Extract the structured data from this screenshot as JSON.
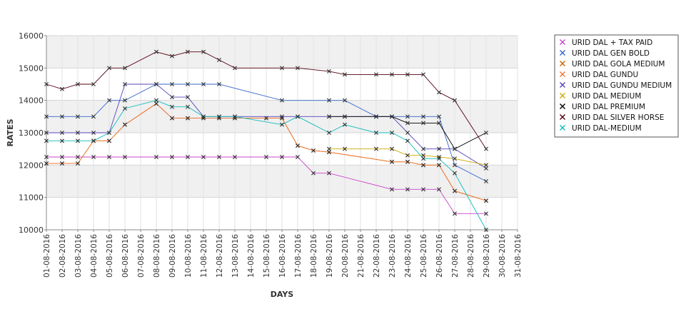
{
  "chart_data": {
    "type": "line",
    "title": "",
    "xlabel": "DAYS",
    "ylabel": "RATES",
    "ylim": [
      10000,
      16000
    ],
    "yticks": [
      10000,
      11000,
      12000,
      13000,
      14000,
      15000,
      16000
    ],
    "x_categories": [
      "01-08-2016",
      "02-08-2016",
      "03-08-2016",
      "04-08-2016",
      "05-08-2016",
      "06-08-2016",
      "07-08-2016",
      "08-08-2016",
      "09-08-2016",
      "10-08-2016",
      "11-08-2016",
      "12-08-2016",
      "13-08-2016",
      "14-08-2016",
      "15-08-2016",
      "16-08-2016",
      "17-08-2016",
      "18-08-2016",
      "19-08-2016",
      "20-08-2016",
      "21-08-2016",
      "22-08-2016",
      "23-08-2016",
      "24-08-2016",
      "25-08-2016",
      "26-08-2016",
      "27-08-2016",
      "28-08-2016",
      "29-08-2016",
      "30-08-2016",
      "31-08-2016"
    ],
    "grid": true,
    "legend_position": "right",
    "series": [
      {
        "name": "URID DAL + TAX PAID",
        "color": "#cc44cc",
        "points": [
          [
            0,
            12250
          ],
          [
            1,
            12250
          ],
          [
            2,
            12250
          ],
          [
            3,
            12250
          ],
          [
            4,
            12250
          ],
          [
            5,
            12250
          ],
          [
            7,
            12250
          ],
          [
            8,
            12250
          ],
          [
            9,
            12250
          ],
          [
            10,
            12250
          ],
          [
            11,
            12250
          ],
          [
            12,
            12250
          ],
          [
            14,
            12250
          ],
          [
            15,
            12250
          ],
          [
            16,
            12250
          ],
          [
            17,
            11750
          ],
          [
            18,
            11750
          ],
          [
            22,
            11250
          ],
          [
            23,
            11250
          ],
          [
            24,
            11250
          ],
          [
            25,
            11250
          ],
          [
            26,
            10500
          ],
          [
            28,
            10500
          ]
        ]
      },
      {
        "name": "URID DAL GEN BOLD",
        "color": "#3366cc",
        "points": [
          [
            0,
            13500
          ],
          [
            1,
            13500
          ],
          [
            2,
            13500
          ],
          [
            3,
            13500
          ],
          [
            4,
            14000
          ],
          [
            5,
            14000
          ],
          [
            7,
            14500
          ],
          [
            8,
            14500
          ],
          [
            9,
            14500
          ],
          [
            10,
            14500
          ],
          [
            11,
            14500
          ],
          [
            15,
            14000
          ],
          [
            18,
            14000
          ],
          [
            19,
            14000
          ],
          [
            21,
            13500
          ],
          [
            22,
            13500
          ],
          [
            23,
            13500
          ],
          [
            24,
            13500
          ],
          [
            25,
            13500
          ],
          [
            26,
            12000
          ],
          [
            28,
            11500
          ]
        ]
      },
      {
        "name": "URID DAL GOLA MEDIUM",
        "color": "#cc6600",
        "points": [
          [
            0,
            12050
          ],
          [
            1,
            12050
          ],
          [
            2,
            12050
          ],
          [
            3,
            12750
          ],
          [
            4,
            12750
          ],
          [
            5,
            13250
          ],
          [
            7,
            13900
          ],
          [
            8,
            13450
          ],
          [
            9,
            13450
          ],
          [
            10,
            13450
          ],
          [
            11,
            13450
          ],
          [
            12,
            13450
          ],
          [
            14,
            13450
          ],
          [
            15,
            13450
          ],
          [
            16,
            12600
          ],
          [
            17,
            12450
          ],
          [
            18,
            12400
          ],
          [
            22,
            12100
          ],
          [
            23,
            12100
          ],
          [
            24,
            12000
          ],
          [
            25,
            12000
          ],
          [
            26,
            11200
          ],
          [
            28,
            10900
          ]
        ]
      },
      {
        "name": "URID DAL GUNDU",
        "color": "#ee7733",
        "points": [
          [
            0,
            12050
          ],
          [
            1,
            12050
          ],
          [
            2,
            12050
          ],
          [
            3,
            12750
          ],
          [
            4,
            12750
          ],
          [
            5,
            13250
          ],
          [
            7,
            13900
          ],
          [
            8,
            13450
          ],
          [
            9,
            13450
          ],
          [
            10,
            13450
          ],
          [
            11,
            13450
          ],
          [
            12,
            13450
          ],
          [
            14,
            13450
          ],
          [
            15,
            13450
          ],
          [
            16,
            12600
          ],
          [
            17,
            12450
          ],
          [
            18,
            12400
          ],
          [
            22,
            12100
          ],
          [
            23,
            12100
          ],
          [
            24,
            12000
          ],
          [
            25,
            12000
          ],
          [
            26,
            11200
          ],
          [
            28,
            10900
          ]
        ]
      },
      {
        "name": "URID DAL GUNDU MEDIUM",
        "color": "#5544bb",
        "points": [
          [
            0,
            13000
          ],
          [
            1,
            13000
          ],
          [
            2,
            13000
          ],
          [
            3,
            13000
          ],
          [
            4,
            13000
          ],
          [
            5,
            14500
          ],
          [
            7,
            14500
          ],
          [
            8,
            14100
          ],
          [
            9,
            14100
          ],
          [
            10,
            13500
          ],
          [
            11,
            13500
          ],
          [
            12,
            13500
          ],
          [
            15,
            13500
          ],
          [
            16,
            13500
          ],
          [
            18,
            13500
          ],
          [
            19,
            13500
          ],
          [
            21,
            13500
          ],
          [
            22,
            13500
          ],
          [
            23,
            13000
          ],
          [
            24,
            12500
          ],
          [
            25,
            12500
          ],
          [
            26,
            12500
          ],
          [
            28,
            11900
          ]
        ]
      },
      {
        "name": "URID DAL MEDIUM",
        "color": "#ccaa00",
        "points": [
          [
            18,
            12500
          ],
          [
            19,
            12500
          ],
          [
            21,
            12500
          ],
          [
            22,
            12500
          ],
          [
            23,
            12300
          ],
          [
            24,
            12300
          ],
          [
            25,
            12250
          ],
          [
            26,
            12200
          ],
          [
            28,
            12000
          ]
        ]
      },
      {
        "name": "URID DAL PREMIUM",
        "color": "#000000",
        "points": [
          [
            18,
            13500
          ],
          [
            19,
            13500
          ],
          [
            21,
            13500
          ],
          [
            22,
            13500
          ],
          [
            23,
            13300
          ],
          [
            24,
            13300
          ],
          [
            25,
            13300
          ],
          [
            26,
            12500
          ],
          [
            28,
            13000
          ]
        ]
      },
      {
        "name": "URID DAL SILVER HORSE",
        "color": "#550011",
        "points": [
          [
            0,
            14500
          ],
          [
            1,
            14350
          ],
          [
            2,
            14500
          ],
          [
            3,
            14500
          ],
          [
            4,
            15000
          ],
          [
            5,
            15000
          ],
          [
            7,
            15500
          ],
          [
            8,
            15370
          ],
          [
            9,
            15500
          ],
          [
            10,
            15500
          ],
          [
            11,
            15250
          ],
          [
            12,
            15000
          ],
          [
            15,
            15000
          ],
          [
            16,
            15000
          ],
          [
            18,
            14900
          ],
          [
            19,
            14800
          ],
          [
            21,
            14800
          ],
          [
            22,
            14800
          ],
          [
            23,
            14800
          ],
          [
            24,
            14800
          ],
          [
            25,
            14250
          ],
          [
            26,
            14000
          ],
          [
            28,
            12500
          ]
        ]
      },
      {
        "name": "URID DAL-MEDIUM",
        "color": "#11bbbb",
        "points": [
          [
            0,
            12750
          ],
          [
            1,
            12750
          ],
          [
            2,
            12750
          ],
          [
            3,
            12750
          ],
          [
            4,
            13000
          ],
          [
            5,
            13750
          ],
          [
            7,
            14000
          ],
          [
            8,
            13800
          ],
          [
            9,
            13800
          ],
          [
            10,
            13500
          ],
          [
            11,
            13500
          ],
          [
            12,
            13500
          ],
          [
            15,
            13250
          ],
          [
            16,
            13500
          ],
          [
            18,
            13000
          ],
          [
            19,
            13250
          ],
          [
            21,
            13000
          ],
          [
            22,
            13000
          ],
          [
            23,
            12750
          ],
          [
            24,
            12200
          ],
          [
            25,
            12200
          ],
          [
            26,
            11750
          ],
          [
            28,
            10000
          ]
        ]
      }
    ]
  }
}
